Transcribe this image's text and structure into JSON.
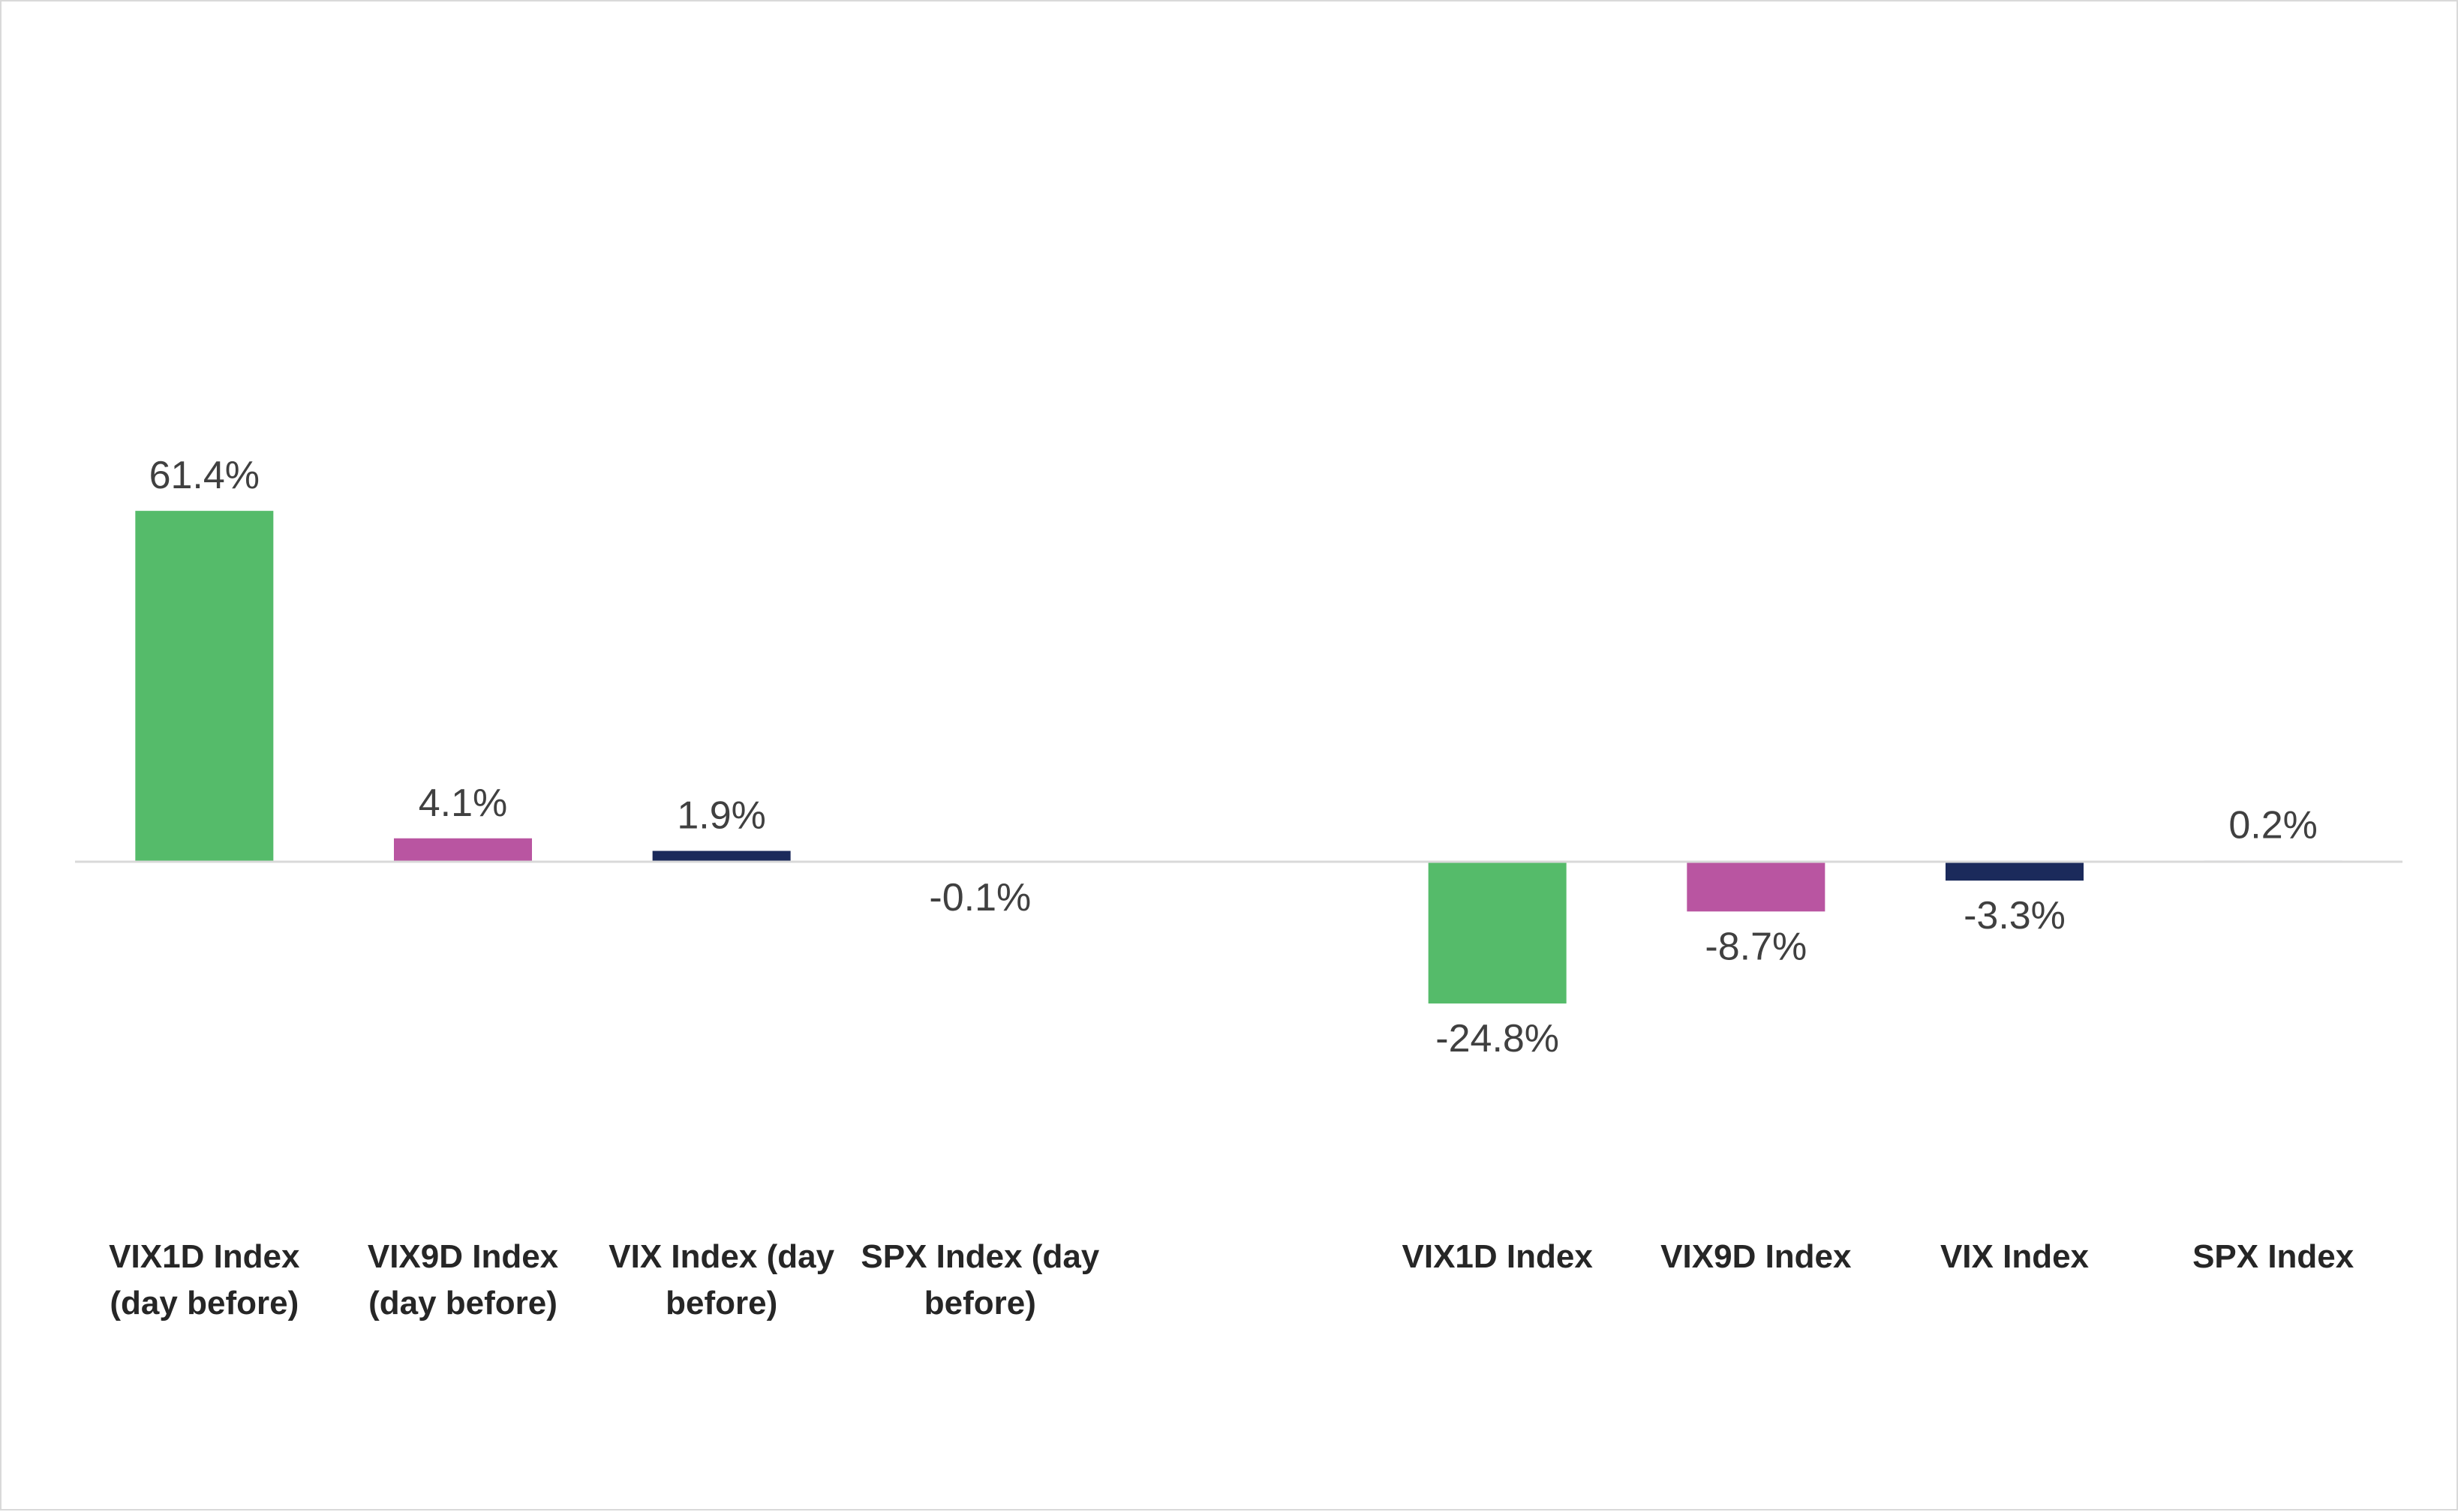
{
  "chart_data": {
    "type": "bar",
    "categories": [
      [
        "VIX1D Index",
        "(day before)"
      ],
      [
        "VIX9D Index",
        "(day before)"
      ],
      [
        "VIX Index (day",
        "before)"
      ],
      [
        "SPX Index (day",
        "before)"
      ],
      [],
      [
        "VIX1D Index"
      ],
      [
        "VIX9D Index"
      ],
      [
        "VIX Index"
      ],
      [
        "SPX Index"
      ]
    ],
    "values": [
      61.4,
      4.1,
      1.9,
      -0.1,
      null,
      -24.8,
      -8.7,
      -3.3,
      0.2
    ],
    "data_labels": [
      "61.4%",
      "4.1%",
      "1.9%",
      "-0.1%",
      "",
      "-24.8%",
      "-8.7%",
      "-3.3%",
      "0.2%"
    ],
    "bar_colors": [
      "#55bb6a",
      "#b955a1",
      "#1b2a5b",
      "#1b2a5b",
      null,
      "#55bb6a",
      "#b955a1",
      "#1b2a5b",
      "#1b2a5b"
    ],
    "title": "",
    "xlabel": "",
    "ylabel": "",
    "ylim": [
      -40,
      100
    ],
    "grid": false,
    "legend": "none",
    "axis_line_color": "#d9d9d9"
  }
}
